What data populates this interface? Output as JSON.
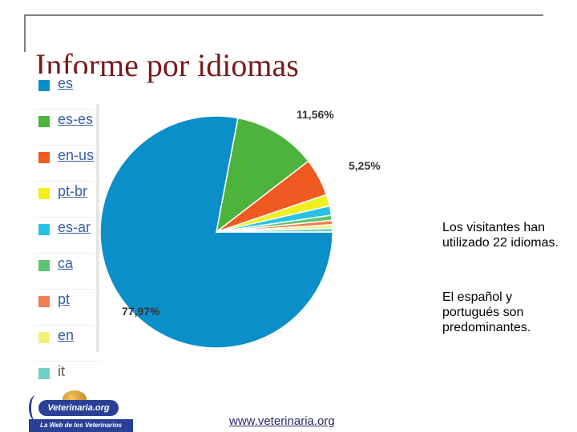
{
  "slide": {
    "title": "Informe por idiomas",
    "note_1": "Los visitantes han utilizado 22 idiomas.",
    "note_2": "El español y portugués son predominantes.",
    "footer_url": "www.veterinaria.org",
    "logo_text": "Veterinaria.org",
    "logo_tagline": "La Web de los Veterinarios"
  },
  "legend": [
    {
      "label": "es",
      "color": "#0b8fc9"
    },
    {
      "label": "es-es",
      "color": "#4db33d"
    },
    {
      "label": "en-us",
      "color": "#f05a22"
    },
    {
      "label": "pt-br",
      "color": "#f2ef1c"
    },
    {
      "label": "es-ar",
      "color": "#29c1e3"
    },
    {
      "label": "ca",
      "color": "#5cc36e"
    },
    {
      "label": "pt",
      "color": "#f07d55"
    },
    {
      "label": "en",
      "color": "#f5f07a"
    },
    {
      "label": "it",
      "color": "#6fd1c3"
    }
  ],
  "chart_data": {
    "type": "pie",
    "slices": [
      {
        "label": "es",
        "value": 77.97,
        "color": "#0b8fc9",
        "data_label": "77,97%"
      },
      {
        "label": "es-es",
        "value": 11.56,
        "color": "#4db33d",
        "data_label": "11,56%"
      },
      {
        "label": "en-us",
        "value": 5.25,
        "color": "#f05a22",
        "data_label": "5,25%"
      },
      {
        "label": "pt-br",
        "value": 1.6,
        "color": "#f2ef1c"
      },
      {
        "label": "es-ar",
        "value": 1.3,
        "color": "#29c1e3"
      },
      {
        "label": "ca",
        "value": 0.7,
        "color": "#5cc36e"
      },
      {
        "label": "pt",
        "value": 0.6,
        "color": "#f07d55"
      },
      {
        "label": "en",
        "value": 0.5,
        "color": "#f5f07a"
      },
      {
        "label": "it",
        "value": 0.51,
        "color": "#6fd1c3"
      }
    ]
  }
}
